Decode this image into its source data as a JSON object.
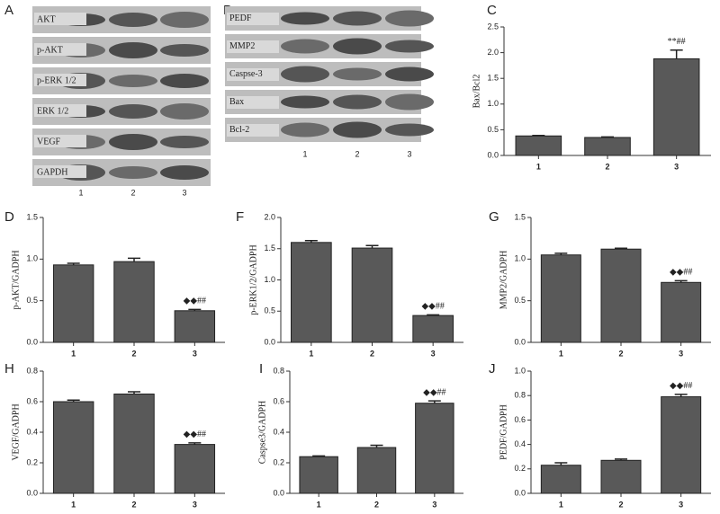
{
  "blots": [
    {
      "letter": "A",
      "rows": [
        "AKT",
        "p-AKT",
        "p-ERK 1/2",
        "ERK 1/2",
        "VEGF",
        "GAPDH"
      ],
      "lanes": [
        "1",
        "2",
        "3"
      ]
    },
    {
      "letter": "B",
      "rows": [
        "PEDF",
        "MMP2",
        "Caspse-3",
        "Bax",
        "Bcl-2"
      ],
      "lanes": [
        "1",
        "2",
        "3"
      ]
    }
  ],
  "chart_data": [
    {
      "type": "bar",
      "panel": "C",
      "ylabel": "Bax/Bcl2",
      "categories": [
        "1",
        "2",
        "3"
      ],
      "values": [
        0.38,
        0.35,
        1.88
      ],
      "errors": [
        0.01,
        0.01,
        0.17
      ],
      "annotations": [
        null,
        null,
        "**##"
      ],
      "color": "#595959",
      "ylim": [
        0,
        2.5
      ],
      "yticks": [
        {
          "value": 0,
          "label": "0.0"
        },
        0.5,
        {
          "value": 1,
          "label": "1.0"
        },
        1.5,
        {
          "value": 2,
          "label": "2.0"
        },
        2.5
      ]
    },
    {
      "type": "bar",
      "panel": "D",
      "ylabel": "p-AKT/GADPH",
      "categories": [
        "1",
        "2",
        "3"
      ],
      "values": [
        0.93,
        0.97,
        0.38
      ],
      "errors": [
        0.02,
        0.04,
        0.015
      ],
      "annotations": [
        null,
        null,
        "◆◆##"
      ],
      "color": "#595959",
      "ylim": [
        0,
        1.5
      ],
      "yticks": [
        {
          "value": 0,
          "label": "0.0"
        },
        0.5,
        {
          "value": 1,
          "label": "1.0"
        },
        1.5
      ]
    },
    {
      "type": "bar",
      "panel": "F",
      "ylabel": "p-ERK1/2/GADPH",
      "categories": [
        "1",
        "2",
        "3"
      ],
      "values": [
        1.6,
        1.51,
        0.43
      ],
      "errors": [
        0.03,
        0.04,
        0.01
      ],
      "annotations": [
        null,
        null,
        "◆◆##"
      ],
      "color": "#595959",
      "ylim": [
        0,
        2
      ],
      "yticks": [
        {
          "value": 0,
          "label": "0.0"
        },
        0.5,
        {
          "value": 1,
          "label": "1.0"
        },
        1.5,
        {
          "value": 2,
          "label": "2.0"
        }
      ]
    },
    {
      "type": "bar",
      "panel": "G",
      "ylabel": "MMP2/GADPH",
      "categories": [
        "1",
        "2",
        "3"
      ],
      "values": [
        1.05,
        1.12,
        0.72
      ],
      "errors": [
        0.02,
        0.01,
        0.02
      ],
      "annotations": [
        null,
        null,
        "◆◆##"
      ],
      "color": "#595959",
      "ylim": [
        0,
        1.5
      ],
      "yticks": [
        {
          "value": 0,
          "label": "0.0"
        },
        0.5,
        {
          "value": 1,
          "label": "1.0"
        },
        1.5
      ]
    },
    {
      "type": "bar",
      "panel": "H",
      "ylabel": "VEGF/GADPH",
      "categories": [
        "1",
        "2",
        "3"
      ],
      "values": [
        0.6,
        0.65,
        0.32
      ],
      "errors": [
        0.01,
        0.015,
        0.01
      ],
      "annotations": [
        null,
        null,
        "◆◆##"
      ],
      "color": "#595959",
      "ylim": [
        0,
        0.8
      ],
      "yticks": [
        {
          "value": 0,
          "label": "0.0"
        },
        0.2,
        0.4,
        0.6,
        0.8
      ]
    },
    {
      "type": "bar",
      "panel": "I",
      "ylabel": "Caspse3/GADPH",
      "categories": [
        "1",
        "2",
        "3"
      ],
      "values": [
        0.24,
        0.3,
        0.59
      ],
      "errors": [
        0.005,
        0.015,
        0.015
      ],
      "annotations": [
        null,
        null,
        "◆◆##"
      ],
      "color": "#595959",
      "ylim": [
        0,
        0.8
      ],
      "yticks": [
        {
          "value": 0,
          "label": "0.0"
        },
        0.2,
        0.4,
        0.6,
        0.8
      ]
    },
    {
      "type": "bar",
      "panel": "J",
      "ylabel": "PEDF/GADPH",
      "categories": [
        "1",
        "2",
        "3"
      ],
      "values": [
        0.23,
        0.27,
        0.79
      ],
      "errors": [
        0.02,
        0.01,
        0.02
      ],
      "annotations": [
        null,
        null,
        "◆◆##"
      ],
      "color": "#595959",
      "ylim": [
        0,
        1
      ],
      "yticks": [
        {
          "value": 0,
          "label": "0.0"
        },
        0.2,
        0.4,
        0.6,
        0.8,
        {
          "value": 1,
          "label": "1.0"
        }
      ]
    }
  ]
}
